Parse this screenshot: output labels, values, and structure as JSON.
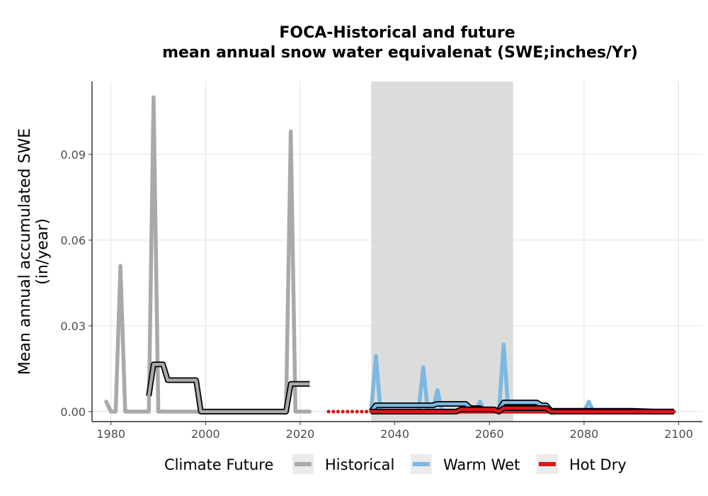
{
  "chart_data": {
    "type": "line",
    "title": "FOCA-Historical and future",
    "subtitle": "mean annual snow water equivalenat (SWE;inches/Yr)",
    "ylabel": "Mean annual accumulated SWE",
    "ylabel_line2": "(in/year)",
    "xlabel": "",
    "xlim": [
      1976,
      2105
    ],
    "ylim": [
      -0.0035,
      0.1155
    ],
    "xticks": [
      1980,
      2000,
      2020,
      2040,
      2060,
      2080,
      2100
    ],
    "yticks": [
      0.0,
      0.03,
      0.06,
      0.09
    ],
    "ytick_labels": [
      "0.00",
      "0.03",
      "0.06",
      "0.09"
    ],
    "grid": true,
    "shaded_period": [
      2035,
      2065
    ],
    "legend": {
      "title": "Climate Future",
      "position": "bottom",
      "entries": [
        "Historical",
        "Warm Wet",
        "Hot Dry"
      ]
    },
    "colors": {
      "historical": "#a9a9a9",
      "warm_wet": "#7cb8e2",
      "hot_dry": "#d7191c",
      "smooth": "#000000",
      "shade": "#dcdcdc"
    },
    "series": [
      {
        "name": "Historical",
        "x": [
          1979,
          1980,
          1981,
          1982,
          1983,
          1984,
          1985,
          1986,
          1987,
          1988,
          1989,
          1990,
          1991,
          1992,
          1993,
          1994,
          1995,
          1996,
          1997,
          1998,
          1999,
          2000,
          2001,
          2002,
          2003,
          2004,
          2005,
          2006,
          2007,
          2008,
          2009,
          2010,
          2011,
          2012,
          2013,
          2014,
          2015,
          2016,
          2017,
          2018,
          2019,
          2020,
          2021,
          2022
        ],
        "y": [
          0.0035,
          0.0,
          0.0,
          0.051,
          0.0,
          0.0,
          0.0,
          0.0,
          0.0,
          0.0,
          0.11,
          0.0,
          0.0,
          0.0,
          0.0,
          0.0,
          0.0,
          0.0,
          0.0,
          0.0,
          0.0,
          0.0,
          0.0,
          0.0,
          0.0,
          0.0,
          0.0,
          0.0,
          0.0,
          0.0,
          0.0,
          0.0,
          0.0,
          0.0,
          0.0,
          0.0,
          0.0,
          0.0,
          0.0,
          0.098,
          0.0,
          0.0,
          0.0,
          0.0
        ]
      },
      {
        "name": "Historical smoothed",
        "x": [
          1988,
          1989,
          1990,
          1991,
          1992,
          1993,
          1994,
          1995,
          1996,
          1997,
          1998,
          1999,
          2000,
          2005,
          2010,
          2015,
          2017,
          2018,
          2019,
          2020,
          2021,
          2022
        ],
        "y": [
          0.0055,
          0.0165,
          0.0165,
          0.0165,
          0.011,
          0.011,
          0.011,
          0.011,
          0.011,
          0.011,
          0.011,
          0.0,
          0.0,
          0.0,
          0.0,
          0.0,
          0.0,
          0.0097,
          0.0097,
          0.0097,
          0.0097,
          0.0097
        ]
      },
      {
        "name": "Warm Wet",
        "x": [
          2035,
          2036,
          2037,
          2038,
          2039,
          2040,
          2041,
          2042,
          2043,
          2044,
          2045,
          2046,
          2047,
          2048,
          2049,
          2050,
          2051,
          2052,
          2053,
          2054,
          2055,
          2056,
          2057,
          2058,
          2059,
          2060,
          2061,
          2062,
          2063,
          2064,
          2065,
          2066,
          2067,
          2068,
          2069,
          2070,
          2071,
          2072,
          2073,
          2074,
          2075,
          2076,
          2077,
          2078,
          2079,
          2080,
          2081,
          2082,
          2083,
          2084,
          2085,
          2086,
          2087,
          2088,
          2089,
          2090,
          2091,
          2092,
          2093,
          2094,
          2095,
          2096,
          2097,
          2098,
          2099
        ],
        "y": [
          0.0,
          0.0195,
          0.0,
          0.0,
          0.0,
          0.0,
          0.0,
          0.0,
          0.0,
          0.0,
          0.0,
          0.0155,
          0.0,
          0.0,
          0.0075,
          0.0,
          0.0,
          0.0,
          0.0,
          0.0,
          0.0,
          0.0,
          0.0,
          0.0035,
          0.0,
          0.0,
          0.0,
          0.0,
          0.0235,
          0.0,
          0.0,
          0.0,
          0.0,
          0.0,
          0.0,
          0.0,
          0.0,
          0.0,
          0.0,
          0.0,
          0.0,
          0.0,
          0.0,
          0.0,
          0.0,
          0.0,
          0.0035,
          0.0,
          0.0,
          0.0,
          0.0,
          0.0,
          0.0,
          0.0,
          0.0,
          0.0,
          0.0,
          0.0,
          0.0,
          0.0,
          0.0,
          0.0,
          0.0,
          0.0,
          0.0
        ]
      },
      {
        "name": "Warm Wet smoothed",
        "x": [
          2035,
          2036,
          2040,
          2045,
          2048,
          2049,
          2050,
          2055,
          2056,
          2057,
          2058,
          2059,
          2060,
          2061,
          2062,
          2063,
          2064,
          2065,
          2070,
          2071,
          2072,
          2073,
          2075,
          2080,
          2085,
          2090,
          2095,
          2099
        ],
        "y": [
          0.0,
          0.0022,
          0.0022,
          0.0022,
          0.0022,
          0.0027,
          0.0027,
          0.0027,
          0.0012,
          0.0012,
          0.0012,
          0.0005,
          0.0005,
          0.0005,
          0.0005,
          0.0032,
          0.0032,
          0.0032,
          0.0032,
          0.0022,
          0.0022,
          0.0003,
          0.0003,
          0.0003,
          0.0003,
          0.0003,
          0.0,
          0.0
        ]
      },
      {
        "name": "Hot Dry",
        "x": [
          2026,
          2027,
          2028,
          2029,
          2030,
          2031,
          2032,
          2033,
          2034,
          2035,
          2036,
          2037,
          2038,
          2039,
          2040,
          2045,
          2050,
          2055,
          2060,
          2065,
          2070,
          2075,
          2080,
          2085,
          2090,
          2095,
          2099
        ],
        "y": [
          0.0,
          0.0,
          0.0,
          0.0,
          0.0,
          0.0,
          0.0,
          0.0,
          0.0,
          0.0,
          0.0,
          0.0,
          0.0,
          0.0,
          0.0,
          0.0,
          0.0,
          0.0,
          0.0,
          0.0,
          0.0,
          0.0,
          0.0,
          0.0,
          0.0,
          0.0,
          0.0
        ]
      },
      {
        "name": "Hot Dry smoothed",
        "x": [
          2035,
          2040,
          2053,
          2054,
          2055,
          2061,
          2062,
          2063,
          2072,
          2073,
          2080,
          2090,
          2099
        ],
        "y": [
          0.0,
          0.0,
          0.0,
          0.0008,
          0.0008,
          0.0008,
          0.0,
          0.0012,
          0.0012,
          0.0,
          0.0,
          0.0,
          0.0
        ]
      }
    ]
  }
}
